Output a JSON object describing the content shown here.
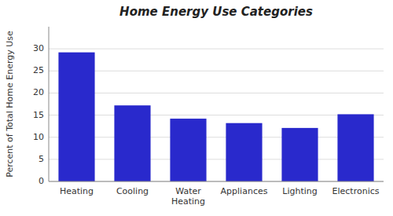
{
  "chart_data": {
    "type": "bar",
    "title": "Home Energy Use Categories",
    "categories": [
      "Heating",
      "Cooling",
      "Water\nHeating",
      "Appliances",
      "Lighting",
      "Electronics"
    ],
    "values": [
      29.2,
      17.2,
      14.2,
      13.2,
      12.1,
      15.2
    ],
    "color": "#2929cc",
    "ylabel": "Percent of Total Home Energy Use",
    "ylim": [
      0,
      35
    ],
    "yticks": [
      0,
      5,
      10,
      15,
      20,
      25,
      30
    ],
    "grid": true
  }
}
